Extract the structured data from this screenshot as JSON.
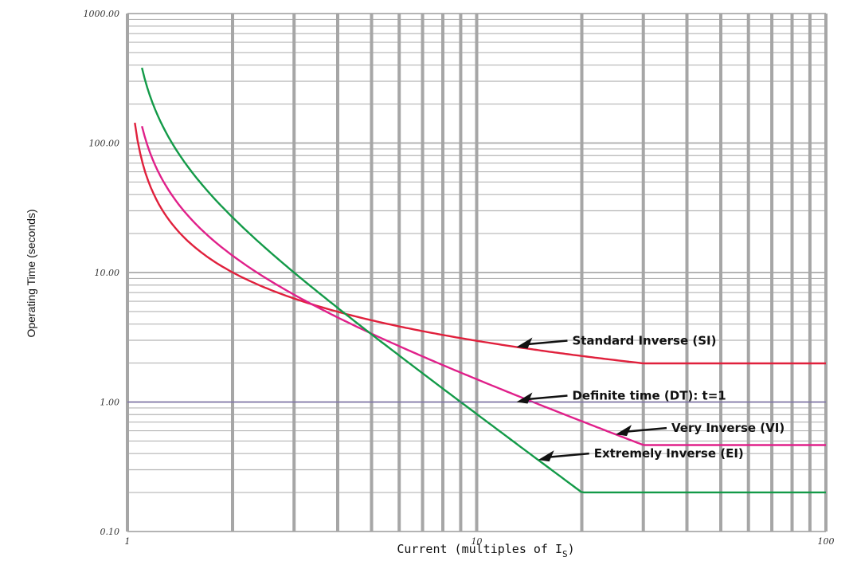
{
  "chart_data": {
    "type": "line",
    "title": "",
    "xlabel": "Current (multiples of I",
    "xlabel_sub": "S",
    "xlabel_close": ")",
    "ylabel": "Operating Time (seconds)",
    "x_scale": "log",
    "y_scale": "log",
    "xlim": [
      1,
      100
    ],
    "ylim": [
      0.1,
      1000
    ],
    "x_ticks": [
      {
        "value": 1,
        "label": "1"
      },
      {
        "value": 10,
        "label": "10"
      },
      {
        "value": 100,
        "label": "100"
      }
    ],
    "y_ticks": [
      {
        "value": 1000,
        "label": "1000.00"
      },
      {
        "value": 100,
        "label": "100.00"
      },
      {
        "value": 10,
        "label": "10.00"
      },
      {
        "value": 1,
        "label": "1.00"
      },
      {
        "value": 0.1,
        "label": "0.10"
      }
    ],
    "grid": true,
    "series": [
      {
        "name": "Standard Inverse (SI)",
        "color": "#e0203c",
        "k": 0.14,
        "alpha": 0.02,
        "x_start": 1.05,
        "x_end": 30,
        "x_max": 100
      },
      {
        "name": "Very Inverse (VI)",
        "color": "#e0208a",
        "k": 13.5,
        "alpha": 1,
        "x_start": 1.1,
        "x_end": 30,
        "x_max": 100
      },
      {
        "name": "Extremely Inverse (EI)",
        "color": "#139a48",
        "k": 80,
        "alpha": 2,
        "x_start": 1.1,
        "x_end": 20,
        "x_max": 100
      },
      {
        "name": "Definite time (DT): t=1",
        "color": "#6a5aa8",
        "constant": 1,
        "x_start": 1,
        "x_max": 100
      }
    ],
    "annotations": [
      {
        "text": "Standard Inverse (SI)",
        "series": 0,
        "point_x": 13
      },
      {
        "text": "Definite time (DT): t=1",
        "series": 3,
        "point_x": 13
      },
      {
        "text": "Very Inverse (VI)",
        "series": 1,
        "point_x": 25
      },
      {
        "text": "Extremely Inverse (EI)",
        "series": 2,
        "point_x": 15
      }
    ]
  }
}
